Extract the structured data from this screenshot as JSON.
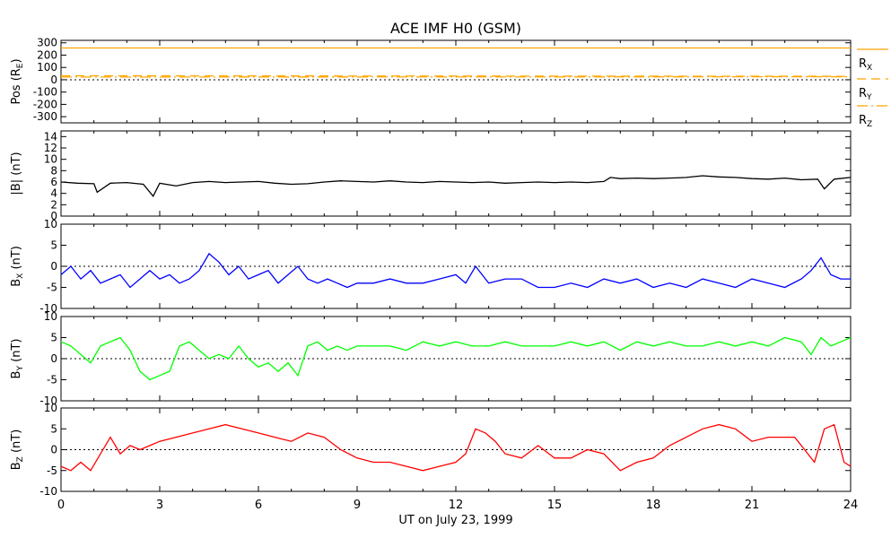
{
  "chart_data": {
    "type": "line",
    "title": "ACE IMF H0 (GSM)",
    "xlabel": "UT on July 23, 1999",
    "xlim": [
      0,
      24
    ],
    "xticks": [
      "0",
      "3",
      "6",
      "9",
      "12",
      "15",
      "18",
      "21",
      "24"
    ],
    "panels": [
      {
        "ylabel": "Pos (R",
        "ylabel_sub": "E",
        "ylabel_end": ")",
        "ylim": [
          -350,
          320
        ],
        "yticks": [
          "300",
          "200",
          "100",
          "0",
          "-100",
          "-200",
          "-300"
        ],
        "zero_line": true,
        "legend": [
          {
            "main": "R",
            "sub": "X",
            "style": "solid",
            "color": "#ffa500"
          },
          {
            "main": "R",
            "sub": "Y",
            "style": "dashed",
            "color": "#ffa500"
          },
          {
            "main": "R",
            "sub": "Z",
            "style": "dashdot",
            "color": "#ffa500"
          }
        ],
        "series": [
          {
            "color": "#ffa500",
            "style": "solid",
            "x": [
              0,
              24
            ],
            "y": [
              258,
              258
            ]
          },
          {
            "color": "#ffa500",
            "style": "dashed",
            "x": [
              0,
              24
            ],
            "y": [
              32,
              28
            ]
          },
          {
            "color": "#ffa500",
            "style": "dashdot",
            "x": [
              0,
              24
            ],
            "y": [
              22,
              24
            ]
          }
        ]
      },
      {
        "ylabel": "|B| (nT)",
        "ylim": [
          0,
          15
        ],
        "yticks": [
          "14",
          "12",
          "10",
          "8",
          "6",
          "4",
          "2",
          "0"
        ],
        "zero_line": false,
        "series": [
          {
            "color": "#000000",
            "x": [
              0,
              0.5,
              1.0,
              1.1,
              1.5,
              2.0,
              2.5,
              2.8,
              3.0,
              3.5,
              4.0,
              4.5,
              5.0,
              5.5,
              6.0,
              6.5,
              7.0,
              7.5,
              8.0,
              8.5,
              9.0,
              9.5,
              10.0,
              10.5,
              11.0,
              11.5,
              12.0,
              12.5,
              13.0,
              13.5,
              14.0,
              14.5,
              15.0,
              15.5,
              16.0,
              16.5,
              16.7,
              17.0,
              17.5,
              18.0,
              18.5,
              19.0,
              19.5,
              20.0,
              20.5,
              21.0,
              21.5,
              22.0,
              22.5,
              23.0,
              23.2,
              23.5,
              24.0
            ],
            "y": [
              6.0,
              5.8,
              5.7,
              4.2,
              5.8,
              5.9,
              5.6,
              3.5,
              5.8,
              5.3,
              5.9,
              6.1,
              5.9,
              6.0,
              6.1,
              5.8,
              5.6,
              5.7,
              6.0,
              6.2,
              6.1,
              6.0,
              6.2,
              6.0,
              5.9,
              6.1,
              6.0,
              5.9,
              6.0,
              5.8,
              5.9,
              6.0,
              5.9,
              6.0,
              5.9,
              6.1,
              6.8,
              6.6,
              6.7,
              6.6,
              6.7,
              6.8,
              7.1,
              6.9,
              6.8,
              6.6,
              6.5,
              6.7,
              6.4,
              6.5,
              4.8,
              6.5,
              6.8
            ]
          }
        ]
      },
      {
        "ylabel": "B",
        "ylabel_sub": "X",
        "ylabel_end": " (nT)",
        "ylim": [
          -10,
          10
        ],
        "yticks": [
          "10",
          "5",
          "0",
          "-5",
          "-10"
        ],
        "zero_line": true,
        "series": [
          {
            "color": "#0000ff",
            "x": [
              0,
              0.3,
              0.6,
              0.9,
              1.2,
              1.5,
              1.8,
              2.1,
              2.4,
              2.7,
              3.0,
              3.3,
              3.6,
              3.9,
              4.2,
              4.5,
              4.8,
              5.1,
              5.4,
              5.7,
              6.0,
              6.3,
              6.6,
              6.9,
              7.2,
              7.5,
              7.8,
              8.1,
              8.4,
              8.7,
              9.0,
              9.5,
              10.0,
              10.5,
              11.0,
              11.5,
              12.0,
              12.3,
              12.6,
              13.0,
              13.5,
              14.0,
              14.5,
              15.0,
              15.5,
              16.0,
              16.5,
              17.0,
              17.5,
              18.0,
              18.5,
              19.0,
              19.5,
              20.0,
              20.5,
              21.0,
              21.5,
              22.0,
              22.5,
              22.8,
              23.1,
              23.4,
              23.7,
              24.0
            ],
            "y": [
              -2,
              0,
              -3,
              -1,
              -4,
              -3,
              -2,
              -5,
              -3,
              -1,
              -3,
              -2,
              -4,
              -3,
              -1,
              3,
              1,
              -2,
              0,
              -3,
              -2,
              -1,
              -4,
              -2,
              0,
              -3,
              -4,
              -3,
              -4,
              -5,
              -4,
              -4,
              -3,
              -4,
              -4,
              -3,
              -2,
              -4,
              0,
              -4,
              -3,
              -3,
              -5,
              -5,
              -4,
              -5,
              -3,
              -4,
              -3,
              -5,
              -4,
              -5,
              -3,
              -4,
              -5,
              -3,
              -4,
              -5,
              -3,
              -1,
              2,
              -2,
              -3,
              -3
            ]
          }
        ]
      },
      {
        "ylabel": "B",
        "ylabel_sub": "Y",
        "ylabel_end": " (nT)",
        "ylim": [
          -10,
          10
        ],
        "yticks": [
          "10",
          "5",
          "0",
          "-5",
          "-10"
        ],
        "zero_line": true,
        "series": [
          {
            "color": "#00ff00",
            "x": [
              0,
              0.3,
              0.6,
              0.9,
              1.2,
              1.5,
              1.8,
              2.1,
              2.4,
              2.7,
              3.0,
              3.3,
              3.6,
              3.9,
              4.2,
              4.5,
              4.8,
              5.1,
              5.4,
              5.7,
              6.0,
              6.3,
              6.6,
              6.9,
              7.2,
              7.5,
              7.8,
              8.1,
              8.4,
              8.7,
              9.0,
              9.5,
              10.0,
              10.5,
              11.0,
              11.5,
              12.0,
              12.5,
              13.0,
              13.5,
              14.0,
              14.5,
              15.0,
              15.5,
              16.0,
              16.5,
              17.0,
              17.5,
              18.0,
              18.5,
              19.0,
              19.5,
              20.0,
              20.5,
              21.0,
              21.5,
              22.0,
              22.5,
              22.8,
              23.1,
              23.4,
              23.7,
              24.0
            ],
            "y": [
              4,
              3,
              1,
              -1,
              3,
              4,
              5,
              2,
              -3,
              -5,
              -4,
              -3,
              3,
              4,
              2,
              0,
              1,
              0,
              3,
              0,
              -2,
              -1,
              -3,
              -1,
              -4,
              3,
              4,
              2,
              3,
              2,
              3,
              3,
              3,
              2,
              4,
              3,
              4,
              3,
              3,
              4,
              3,
              3,
              3,
              4,
              3,
              4,
              2,
              4,
              3,
              4,
              3,
              3,
              4,
              3,
              4,
              3,
              5,
              4,
              1,
              5,
              3,
              4,
              5
            ]
          }
        ]
      },
      {
        "ylabel": "B",
        "ylabel_sub": "Z",
        "ylabel_end": " (nT)",
        "ylim": [
          -10,
          10
        ],
        "yticks": [
          "10",
          "5",
          "0",
          "-5",
          "-10"
        ],
        "zero_line": true,
        "series": [
          {
            "color": "#ff0000",
            "x": [
              0,
              0.3,
              0.6,
              0.9,
              1.2,
              1.5,
              1.8,
              2.1,
              2.4,
              2.7,
              3.0,
              3.5,
              4.0,
              4.5,
              5.0,
              5.5,
              6.0,
              6.5,
              7.0,
              7.5,
              8.0,
              8.5,
              9.0,
              9.5,
              10.0,
              10.5,
              11.0,
              11.5,
              12.0,
              12.3,
              12.6,
              12.9,
              13.2,
              13.5,
              14.0,
              14.5,
              15.0,
              15.5,
              16.0,
              16.5,
              17.0,
              17.5,
              18.0,
              18.5,
              19.0,
              19.5,
              20.0,
              20.5,
              21.0,
              21.5,
              22.0,
              22.3,
              22.6,
              22.9,
              23.2,
              23.5,
              23.8,
              24.0
            ],
            "y": [
              -4,
              -5,
              -3,
              -5,
              -1,
              3,
              -1,
              1,
              0,
              1,
              2,
              3,
              4,
              5,
              6,
              5,
              4,
              3,
              2,
              4,
              3,
              0,
              -2,
              -3,
              -3,
              -4,
              -5,
              -4,
              -3,
              -1,
              5,
              4,
              2,
              -1,
              -2,
              1,
              -2,
              -2,
              0,
              -1,
              -5,
              -3,
              -2,
              1,
              3,
              5,
              6,
              5,
              2,
              3,
              3,
              3,
              0,
              -3,
              5,
              6,
              -3,
              -4
            ]
          }
        ]
      }
    ]
  }
}
